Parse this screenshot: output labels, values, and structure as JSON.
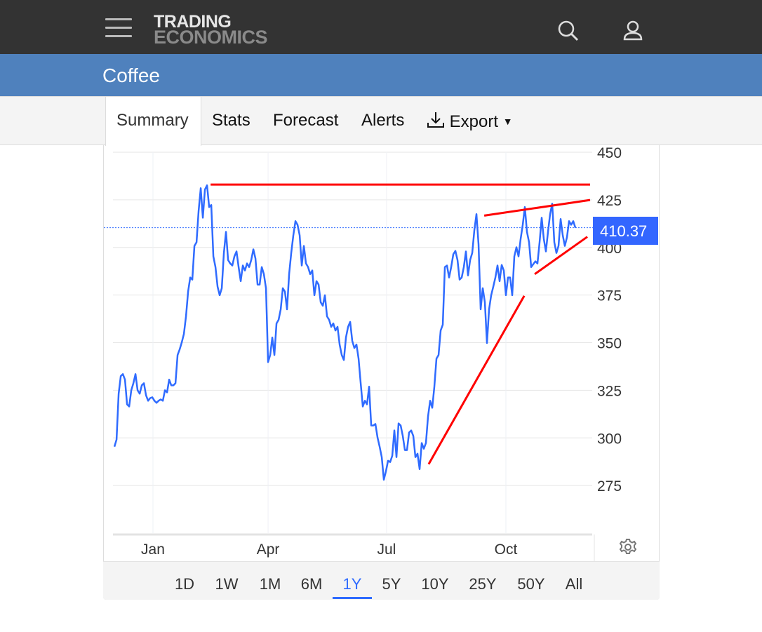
{
  "header": {
    "logo_line1": "TRADING",
    "logo_line2": "ECONOMICS",
    "title": "Coffee"
  },
  "tabs": [
    {
      "label": "Summary",
      "active": true
    },
    {
      "label": "Stats"
    },
    {
      "label": "Forecast"
    },
    {
      "label": "Alerts"
    },
    {
      "label": "Export"
    }
  ],
  "ranges": [
    {
      "label": "1D"
    },
    {
      "label": "1W"
    },
    {
      "label": "1M"
    },
    {
      "label": "6M"
    },
    {
      "label": "1Y",
      "active": true
    },
    {
      "label": "5Y"
    },
    {
      "label": "10Y"
    },
    {
      "label": "25Y"
    },
    {
      "label": "50Y"
    },
    {
      "label": "All"
    }
  ],
  "colors": {
    "header": "#333333",
    "titlebar": "#4f81bd",
    "line": "#2f6bff",
    "trend": "#ff0000",
    "active": "#2f6bff"
  },
  "chart_data": {
    "type": "line",
    "title": "Coffee",
    "last_value": "410.37",
    "ylim": [
      250,
      450
    ],
    "yticks": [
      275,
      300,
      325,
      350,
      375,
      400,
      425,
      450
    ],
    "xlim": [
      -0.7,
      227
    ],
    "xticks": [
      {
        "label": "Jan",
        "at": 18.3
      },
      {
        "label": "Apr",
        "at": 73
      },
      {
        "label": "Jul",
        "at": 129.3
      },
      {
        "label": "Oct",
        "at": 186
      }
    ],
    "series": [
      {
        "name": "Coffee",
        "values": [
          295.4,
          299.1,
          323.2,
          332.4,
          333.5,
          330.6,
          317.6,
          316.5,
          325,
          328.7,
          333.5,
          325,
          323.2,
          327.6,
          328.7,
          322.4,
          319.5,
          320.9,
          321.3,
          319.5,
          318.4,
          319.5,
          320.2,
          319.5,
          325,
          323.9,
          330.6,
          327.6,
          327.6,
          328.7,
          343.5,
          346.5,
          350.2,
          354.6,
          363.8,
          376.8,
          384.2,
          383.1,
          400.8,
          402.7,
          419.3,
          431.1,
          415.6,
          430.4,
          432.6,
          421.2,
          422.3,
          395.3,
          389.7,
          379.4,
          374.9,
          378.6,
          397.1,
          408.2,
          393.4,
          391.6,
          390.5,
          395.3,
          397.9,
          389.7,
          382.3,
          390.5,
          387.9,
          391.6,
          389.7,
          393.4,
          399,
          394.2,
          380.5,
          380.5,
          389.7,
          386,
          378.6,
          339.8,
          343.5,
          352.7,
          343.5,
          360.1,
          362,
          367.5,
          378.6,
          376.8,
          367.5,
          386,
          397.1,
          406.4,
          413.8,
          411.9,
          406.4,
          390.5,
          400.8,
          391.6,
          389.7,
          386,
          387.9,
          374.9,
          382.3,
          380.5,
          371.2,
          369.4,
          374.9,
          363.8,
          362,
          358.3,
          360.1,
          356.4,
          358.3,
          349,
          343.5,
          340.9,
          352.7,
          358.3,
          360.9,
          350.9,
          347.2,
          349,
          341.6,
          328.7,
          316.5,
          319.5,
          317.6,
          326.9,
          306.5,
          306.5,
          307.3,
          300.2,
          295.4,
          289.9,
          278,
          282.5,
          288,
          287.3,
          290.6,
          303.9,
          289.9,
          307.6,
          306.5,
          301,
          293.6,
          293.6,
          302.8,
          303.9,
          301,
          289.9,
          291.7,
          283.6,
          297.3,
          294.3,
          297.3,
          311.3,
          319.5,
          315.8,
          326.9,
          341.6,
          343.5,
          356.4,
          359.4,
          389.7,
          390.5,
          384.2,
          389.7,
          396.4,
          398.2,
          393.4,
          383.1,
          384.2,
          389.7,
          397.9,
          385.3,
          393.4,
          397.1,
          409,
          417.5,
          401.6,
          367.5,
          378.6,
          371.2,
          349.8,
          367.5,
          374.9,
          379.4,
          384.2,
          390.5,
          382.3,
          390.8,
          387.9,
          374.9,
          384.2,
          384.2,
          374.9,
          395.3,
          400.1,
          395.3,
          404.5,
          411.9,
          421.2,
          408.2,
          402.7,
          389.7,
          391.2,
          392.7,
          391.6,
          402.7,
          415.6,
          404.5,
          397.9,
          408.2,
          417.5,
          423,
          402.7,
          397.1,
          400.8,
          414.9,
          406.4,
          400.8,
          405.3,
          413.8,
          411.9,
          413.8,
          410.37
        ]
      }
    ],
    "trendlines": [
      {
        "x": [
          45.7,
          226
        ],
        "y": [
          433,
          433
        ]
      },
      {
        "x": [
          175.7,
          226
        ],
        "y": [
          416.7,
          424.9
        ]
      },
      {
        "x": [
          199.7,
          224.7
        ],
        "y": [
          386,
          405.6
        ]
      },
      {
        "x": [
          149.3,
          194.7
        ],
        "y": [
          286.2,
          374.6
        ]
      }
    ],
    "grid": true
  }
}
